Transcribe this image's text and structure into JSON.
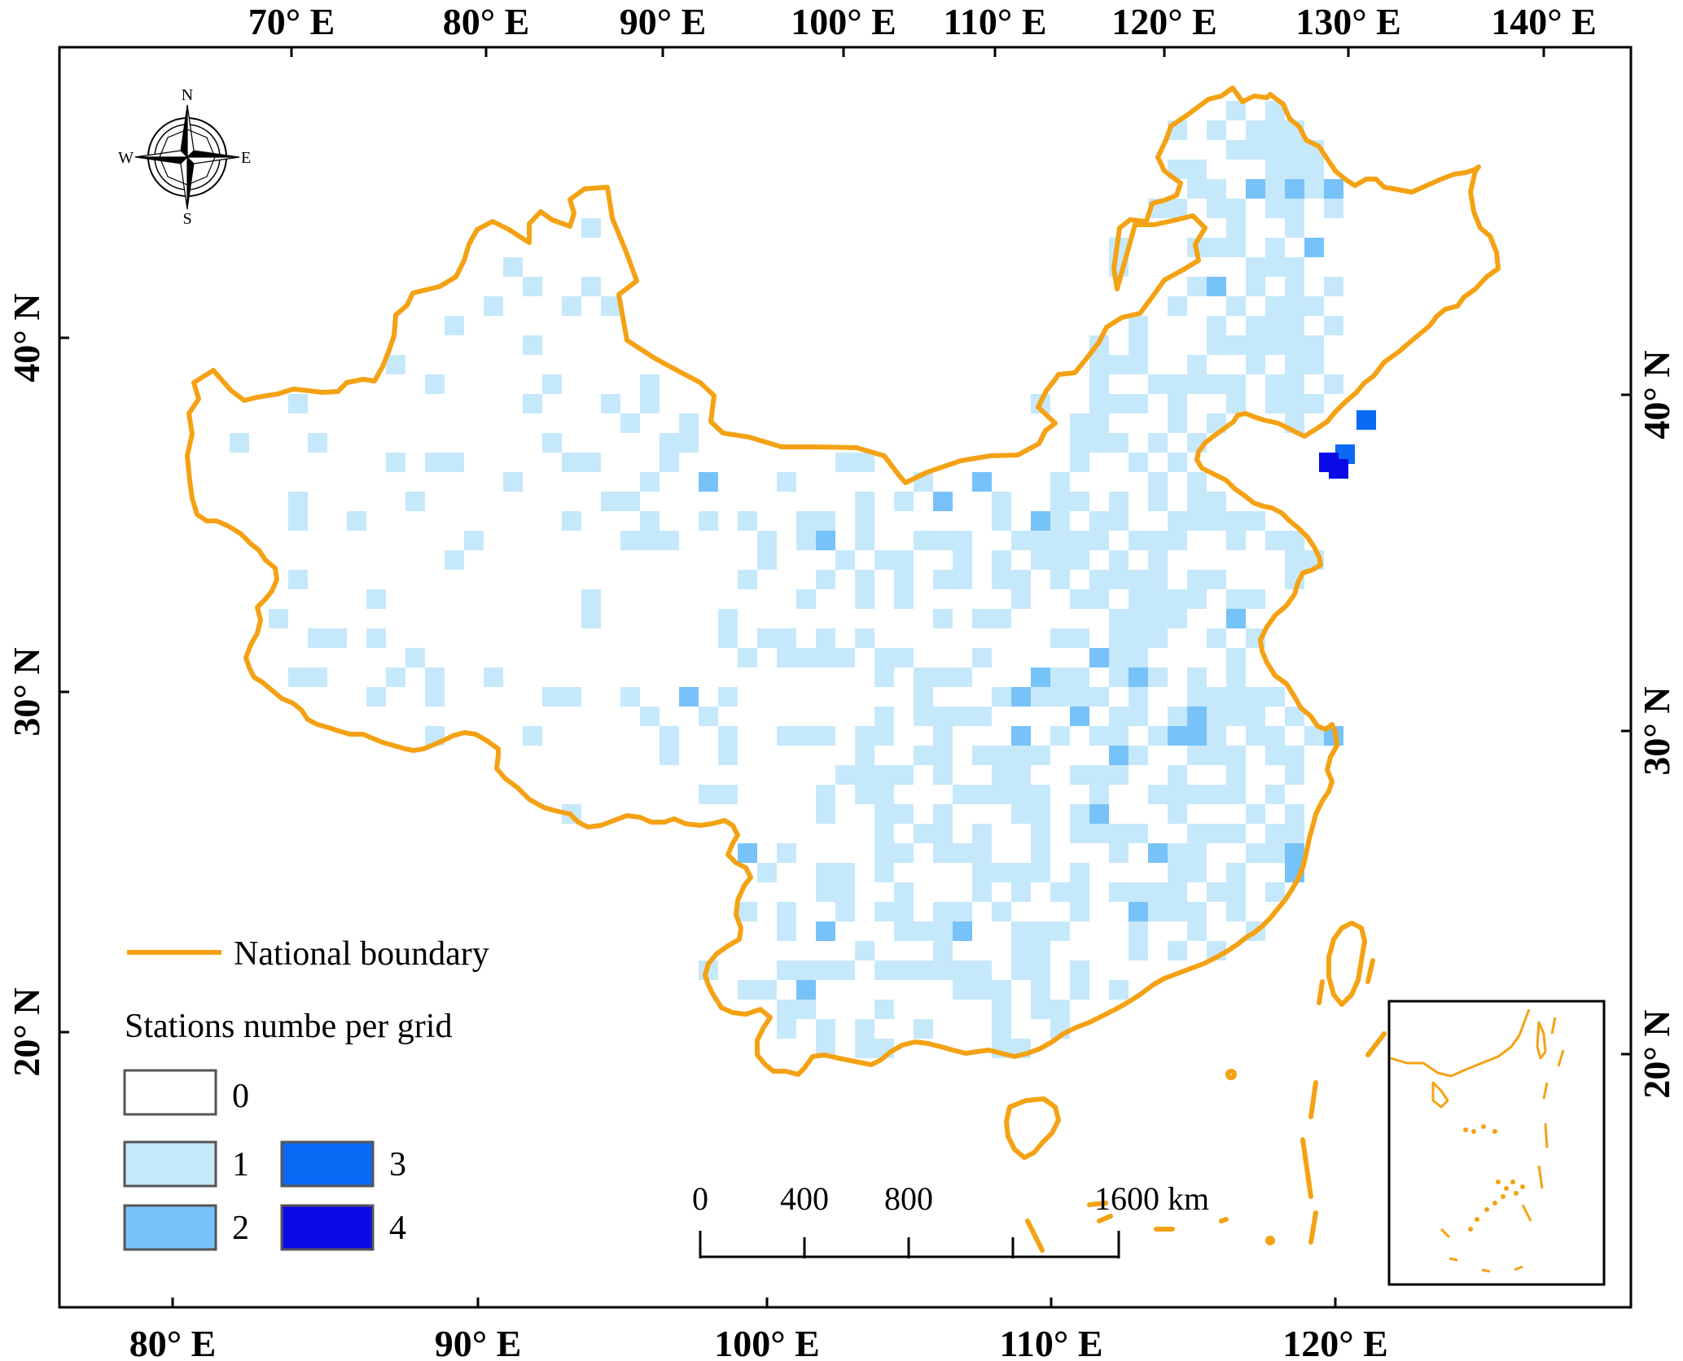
{
  "map": {
    "top_lon_labels": [
      "70° E",
      "80° E",
      "90° E",
      "100° E",
      "110° E",
      "120° E",
      "130° E",
      "140° E"
    ],
    "bottom_lon_labels": [
      "80° E",
      "90° E",
      "100° E",
      "110° E",
      "120° E"
    ],
    "left_lat_labels": [
      "40° N",
      "30° N",
      "20° N"
    ],
    "right_lat_labels": [
      "40° N",
      "30° N",
      "20° N"
    ],
    "compass": {
      "n": "N",
      "s": "S",
      "e": "E",
      "w": "W"
    },
    "legend": {
      "boundary_label": "National boundary",
      "title": "Stations numbe per grid",
      "classes": [
        {
          "label": "0",
          "color": "#ffffff"
        },
        {
          "label": "1",
          "color": "#c6e8fb"
        },
        {
          "label": "2",
          "color": "#77c2f8"
        },
        {
          "label": "3",
          "color": "#0a6af5"
        },
        {
          "label": "4",
          "color": "#0a0ae6"
        }
      ]
    },
    "scale_bar": {
      "ticks": [
        "0",
        "400",
        "800",
        "1600 km"
      ]
    },
    "colors": {
      "boundary": "#f4a214",
      "frame": "#000000"
    }
  }
}
